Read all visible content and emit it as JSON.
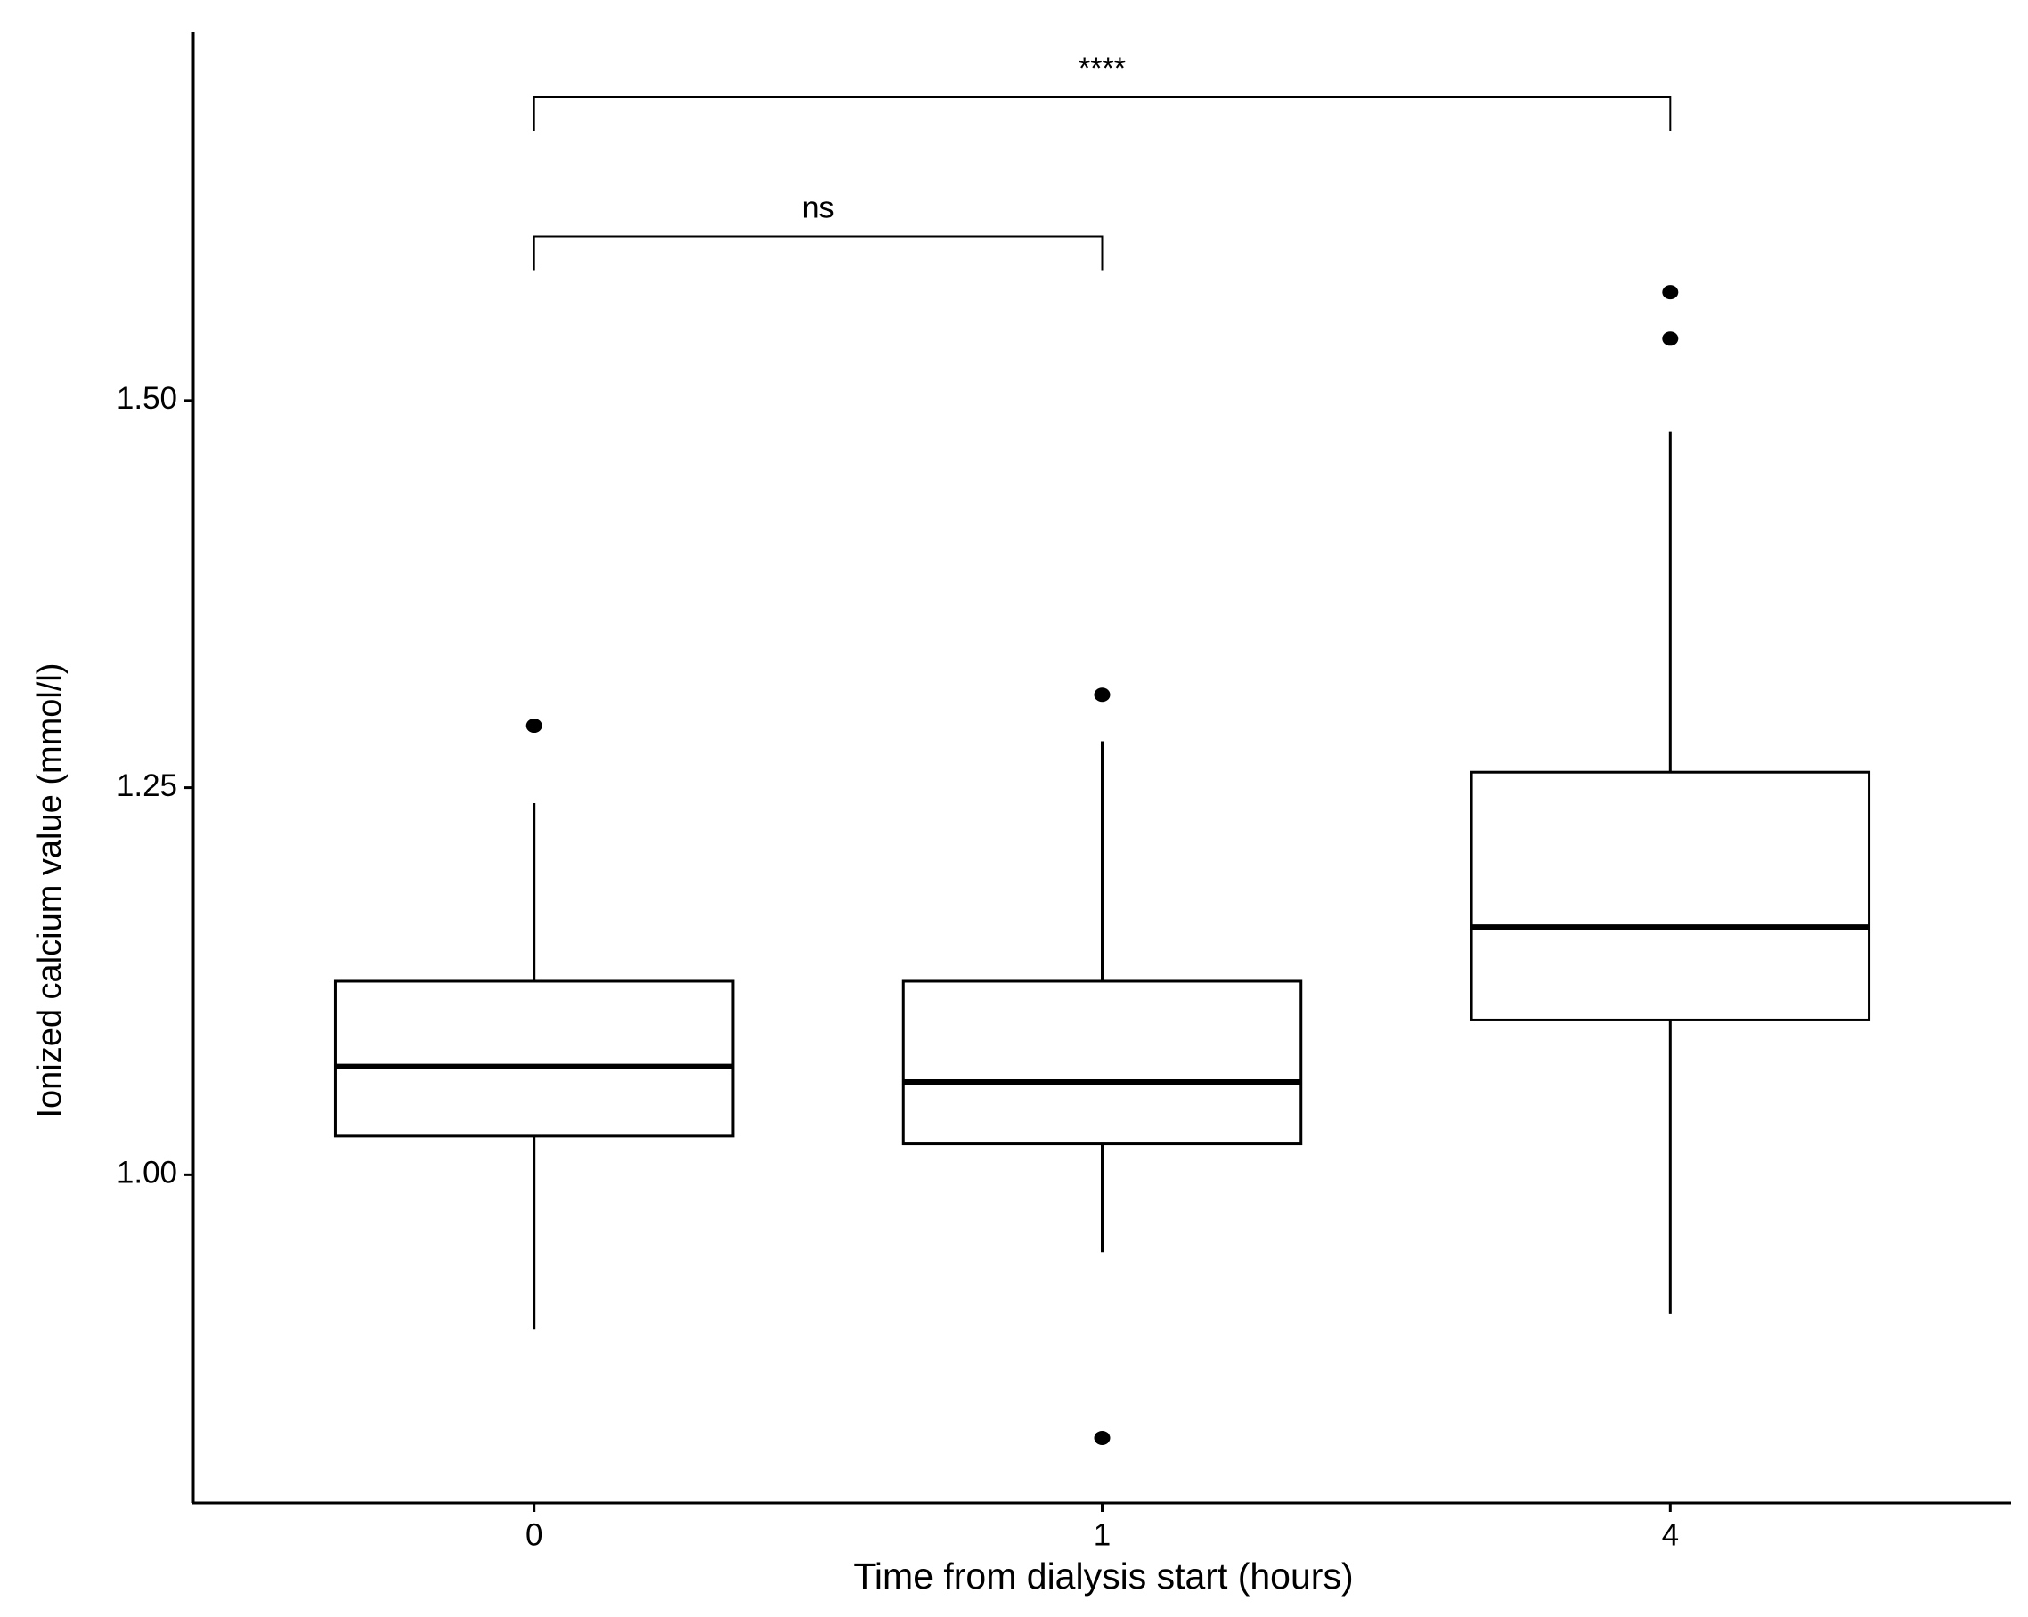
{
  "chart_data": {
    "type": "box",
    "x_label": "Time from dialysis start (hours)",
    "y_label": "Ionized calcium value (mmol/l)",
    "categories": [
      "0",
      "1",
      "4"
    ],
    "color": "#000000",
    "boxes": [
      {
        "whislo": 0.9,
        "q1": 1.025,
        "median": 1.07,
        "q3": 1.125,
        "whishi": 1.24,
        "outliers": [
          1.29
        ]
      },
      {
        "whislo": 0.95,
        "q1": 1.02,
        "median": 1.06,
        "q3": 1.125,
        "whishi": 1.28,
        "outliers": [
          1.31,
          0.83
        ]
      },
      {
        "whislo": 0.91,
        "q1": 1.1,
        "median": 1.16,
        "q3": 1.26,
        "whishi": 1.48,
        "outliers": [
          1.54,
          1.57
        ]
      }
    ],
    "comparisons": [
      {
        "groups": [
          "0",
          "4"
        ],
        "label": "****",
        "y": 1.696
      },
      {
        "groups": [
          "0",
          "1"
        ],
        "label": "ns",
        "y": 1.606
      }
    ],
    "ylim": [
      0.788,
      1.738
    ],
    "yticks": [
      {
        "value": 1.0,
        "label": "1.00"
      },
      {
        "value": 1.25,
        "label": "1.25"
      },
      {
        "value": 1.5,
        "label": "1.50"
      }
    ],
    "grid": false
  }
}
